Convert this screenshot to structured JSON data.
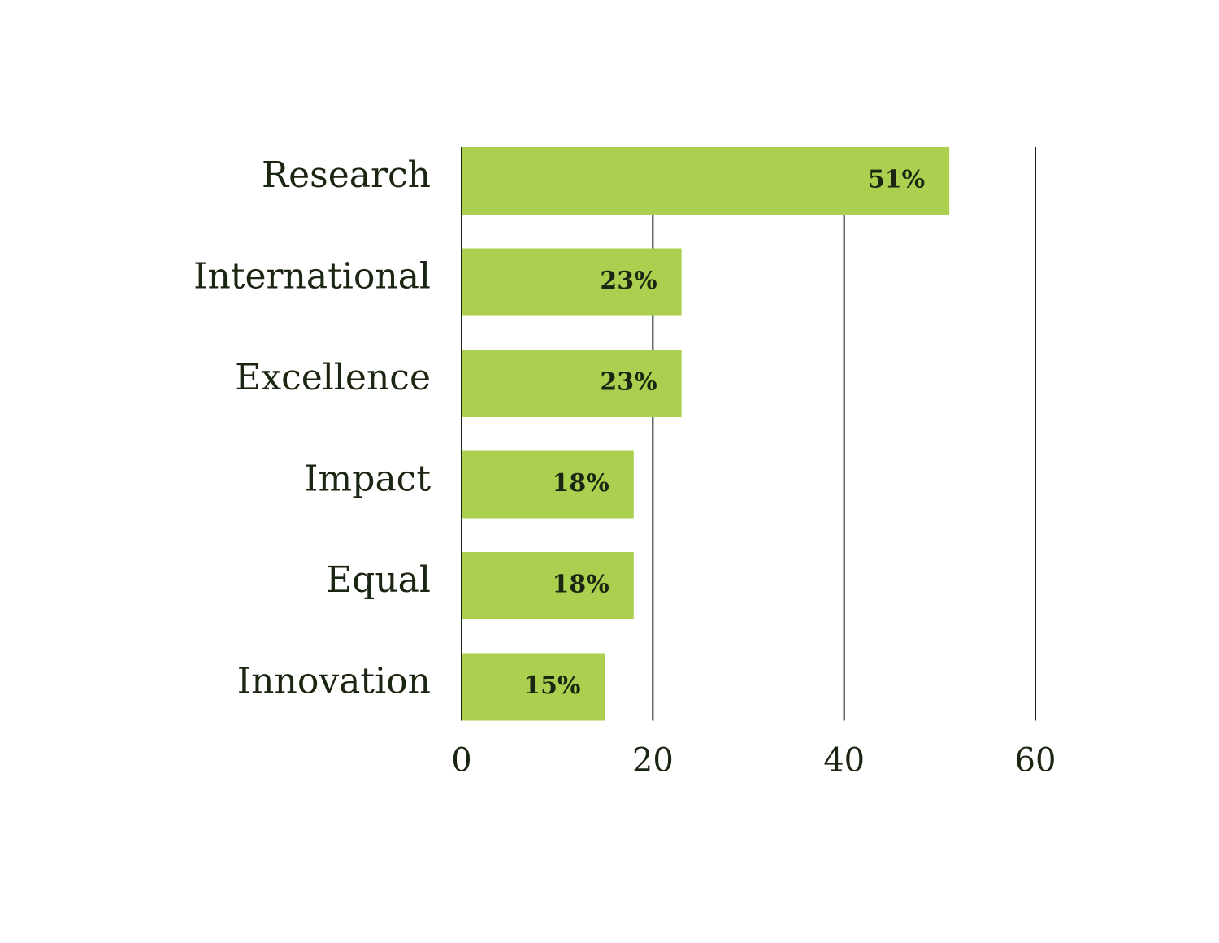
{
  "chart_data": {
    "type": "hbar",
    "categories": [
      "Research",
      "International",
      "Excellence",
      "Impact",
      "Equal",
      "Innovation"
    ],
    "values": [
      51,
      23,
      23,
      18,
      18,
      15
    ],
    "value_labels": [
      "51%",
      "23%",
      "23%",
      "18%",
      "18%",
      "15%"
    ],
    "color": "#abcf4f",
    "xlim": [
      0,
      60
    ],
    "xticks": [
      0,
      20,
      40,
      60
    ],
    "grid": true
  }
}
